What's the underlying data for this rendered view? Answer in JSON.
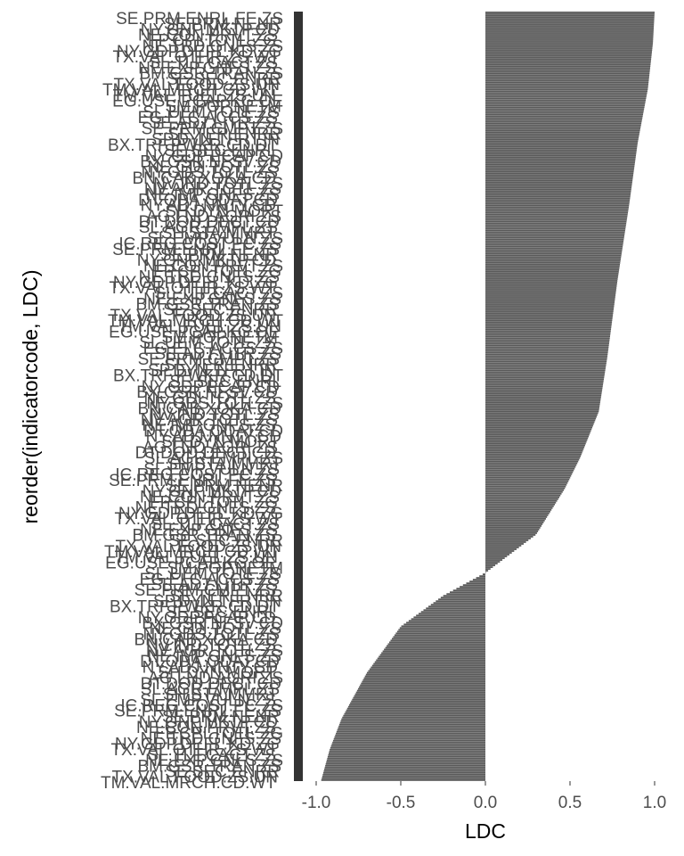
{
  "chart_data": {
    "type": "bar",
    "orientation": "horizontal",
    "xlabel": "LDC",
    "ylabel": "reorder(indicatorcode, LDC)",
    "xlim": [
      -1.1,
      1.0
    ],
    "xticks": [
      -1.0,
      -0.5,
      0.0,
      0.5,
      1.0
    ],
    "xtick_labels": [
      "-1.0",
      "-0.5",
      "0.0",
      "0.5",
      "1.0"
    ],
    "grid": false,
    "bar_color": "#595959",
    "bar_count": 430,
    "visible_category_labels": [
      "SE.PRM.ENRL.FE.ZS",
      "SE.PRM.NENR",
      "NY.GNP.MKTP.CD",
      "NE.CON.PRVT.ZS",
      "FP.CPI.TOTL.ZG",
      "NE.TRD.GNFS.ZS",
      "NY.GDP.DEFL.KD.ZG",
      "TX.VAL.OTHR.ZS.WT",
      "SL.TLF.CACT.ZS",
      "NE.EXP.GNFS.ZS",
      "BM.GSR.TRAN.ZS",
      "SE.SEC.ENRR",
      "TX.VAL.FOOD.ZS.UN",
      "TM.VAL.MRCH.CD.WT",
      "TM.VAL.FUEL.ZS.UN",
      "EG.USE.PCAP.KG.OE",
      "SM.POP.NETM",
      "SL.UEM.TOTL.ZS",
      "EG.ELC.ACCS.ZS",
      "SE.ADT.LITR.ZS",
      "SE.PRM.CMPT.ZS",
      "SE.TER.ENRR",
      "SP.DYN.TFRT.IN",
      "BX.TRF.PWKR.CD.DT",
      "SE.SEC.ENRL",
      "NY.GDP.PCAP.CD",
      "BX.GSR.NFSV.CD",
      "NE.GDI.TOTL.ZS",
      "NY.GDS.TOTL.ZS",
      "BN.CAB.XOKA.CD",
      "NV.IND.TOTL.ZS",
      "NV.AGR.TOTL.ZS",
      "NE.IMP.GNFS.ZS",
      "DT.ODA.ODAT.CD",
      "NY.ADJ.NNTY.CD",
      "SH.DYN.MORT",
      "AG.LND.AGRI.ZS",
      "DT.DOD.DECT.CD",
      "SL.AGR.EMPL.ZS",
      "SH.STA.MMRT",
      "SL.EMP.VULN.ZS",
      "IC.REG.COST.PC.ZS"
    ],
    "values_start": 1.0,
    "values_end": -0.97,
    "value_profile": [
      [
        0.0,
        1.0
      ],
      [
        0.04,
        0.99
      ],
      [
        0.1,
        0.96
      ],
      [
        0.17,
        0.9
      ],
      [
        0.25,
        0.85
      ],
      [
        0.35,
        0.78
      ],
      [
        0.45,
        0.72
      ],
      [
        0.52,
        0.67
      ],
      [
        0.58,
        0.56
      ],
      [
        0.62,
        0.47
      ],
      [
        0.68,
        0.3
      ],
      [
        0.73,
        0.0
      ],
      [
        0.76,
        -0.25
      ],
      [
        0.8,
        -0.5
      ],
      [
        0.86,
        -0.7
      ],
      [
        0.92,
        -0.85
      ],
      [
        0.96,
        -0.92
      ],
      [
        1.0,
        -0.97
      ]
    ]
  }
}
